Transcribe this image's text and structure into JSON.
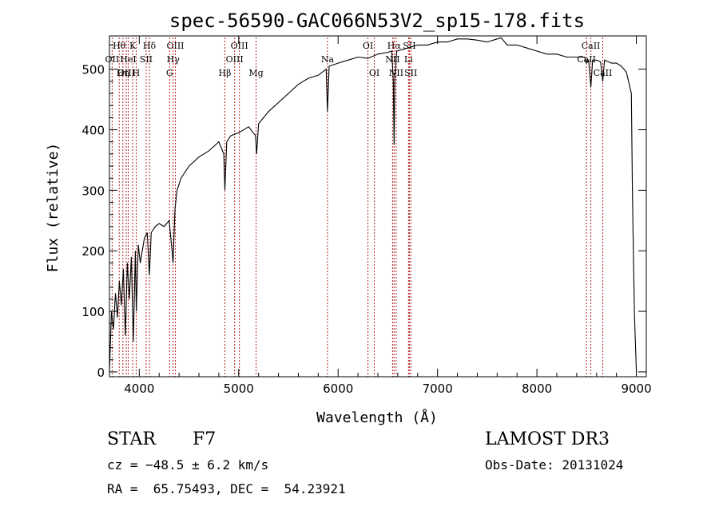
{
  "chart_data": {
    "type": "line",
    "title": "spec-56590-GAC066N53V2_sp15-178.fits",
    "xlabel": "Wavelength (Å)",
    "ylabel": "Flux (relative)",
    "xlim": [
      3700,
      9100
    ],
    "ylim": [
      -8,
      555
    ],
    "xticks": [
      4000,
      5000,
      6000,
      7000,
      8000,
      9000
    ],
    "yticks": [
      0,
      100,
      200,
      300,
      400,
      500
    ],
    "grid": false,
    "series": [
      {
        "name": "spectrum",
        "x": [
          3700,
          3720,
          3740,
          3760,
          3780,
          3800,
          3820,
          3840,
          3860,
          3880,
          3900,
          3920,
          3940,
          3960,
          3970,
          3990,
          4010,
          4050,
          4080,
          4102,
          4120,
          4160,
          4200,
          4250,
          4300,
          4330,
          4340,
          4360,
          4380,
          4420,
          4500,
          4600,
          4700,
          4800,
          4850,
          4861,
          4880,
          4920,
          5000,
          5100,
          5170,
          5180,
          5200,
          5300,
          5400,
          5500,
          5600,
          5700,
          5800,
          5880,
          5893,
          5910,
          6000,
          6100,
          6200,
          6300,
          6400,
          6500,
          6540,
          6555,
          6563,
          6570,
          6590,
          6700,
          6800,
          6900,
          7000,
          7100,
          7200,
          7300,
          7400,
          7500,
          7600,
          7640,
          7660,
          7700,
          7800,
          7900,
          8000,
          8100,
          8200,
          8300,
          8400,
          8480,
          8498,
          8520,
          8542,
          8560,
          8600,
          8640,
          8662,
          8680,
          8750,
          8800,
          8850,
          8900,
          8950,
          8960,
          8970,
          8980,
          8990,
          9000
        ],
        "y": [
          0,
          100,
          70,
          130,
          90,
          150,
          110,
          170,
          60,
          180,
          120,
          190,
          50,
          200,
          100,
          210,
          180,
          220,
          230,
          160,
          230,
          240,
          245,
          240,
          250,
          200,
          180,
          270,
          300,
          320,
          340,
          355,
          365,
          380,
          360,
          300,
          380,
          390,
          395,
          405,
          390,
          360,
          410,
          430,
          445,
          460,
          475,
          485,
          490,
          500,
          430,
          505,
          510,
          515,
          520,
          518,
          525,
          528,
          530,
          480,
          375,
          480,
          530,
          535,
          540,
          540,
          545,
          545,
          550,
          550,
          548,
          545,
          550,
          552,
          548,
          540,
          540,
          535,
          530,
          525,
          525,
          520,
          520,
          520,
          510,
          515,
          470,
          515,
          515,
          512,
          480,
          515,
          510,
          510,
          505,
          495,
          460,
          300,
          200,
          100,
          50,
          0
        ]
      }
    ],
    "line_markers": [
      {
        "label": "Hθ",
        "x": 3798,
        "row": 1
      },
      {
        "label": "OII",
        "x": 3727,
        "row": 2
      },
      {
        "label": "OIII",
        "x": 3869,
        "row": 3
      },
      {
        "label": "HeI",
        "x": 3889,
        "row": 2
      },
      {
        "label": "K",
        "x": 3934,
        "row": 1
      },
      {
        "label": "Hη",
        "x": 3835,
        "row": 3
      },
      {
        "label": "H",
        "x": 3969,
        "row": 3
      },
      {
        "label": "SII",
        "x": 4069,
        "row": 2
      },
      {
        "label": "Hδ",
        "x": 4102,
        "row": 1
      },
      {
        "label": "OIII",
        "x": 4363,
        "row": 1
      },
      {
        "label": "Hγ",
        "x": 4341,
        "row": 2
      },
      {
        "label": "G",
        "x": 4305,
        "row": 3
      },
      {
        "label": "Hβ",
        "x": 4861,
        "row": 3
      },
      {
        "label": "OIII",
        "x": 5007,
        "row": 1
      },
      {
        "label": "OIII",
        "x": 4959,
        "row": 2
      },
      {
        "label": "Mg",
        "x": 5175,
        "row": 3
      },
      {
        "label": "Na",
        "x": 5893,
        "row": 2
      },
      {
        "label": "OI",
        "x": 6300,
        "row": 1
      },
      {
        "label": "OI",
        "x": 6364,
        "row": 3
      },
      {
        "label": "Hα",
        "x": 6563,
        "row": 1
      },
      {
        "label": "NII",
        "x": 6548,
        "row": 2
      },
      {
        "label": "NII",
        "x": 6584,
        "row": 3
      },
      {
        "label": "SII",
        "x": 6717,
        "row": 1
      },
      {
        "label": "Li",
        "x": 6708,
        "row": 2
      },
      {
        "label": "SII",
        "x": 6731,
        "row": 3
      },
      {
        "label": "CaII",
        "x": 8542,
        "row": 1
      },
      {
        "label": "CaII",
        "x": 8498,
        "row": 2
      },
      {
        "label": "CaII",
        "x": 8662,
        "row": 3
      }
    ]
  },
  "info": {
    "object_class": "STAR",
    "subclass": "F7",
    "survey": "LAMOST DR3",
    "redshift": "cz = −48.5 ± 6.2 km/s",
    "obs_date": "Obs-Date: 20131024",
    "coords": "RA =  65.75493, DEC =  54.23921"
  }
}
